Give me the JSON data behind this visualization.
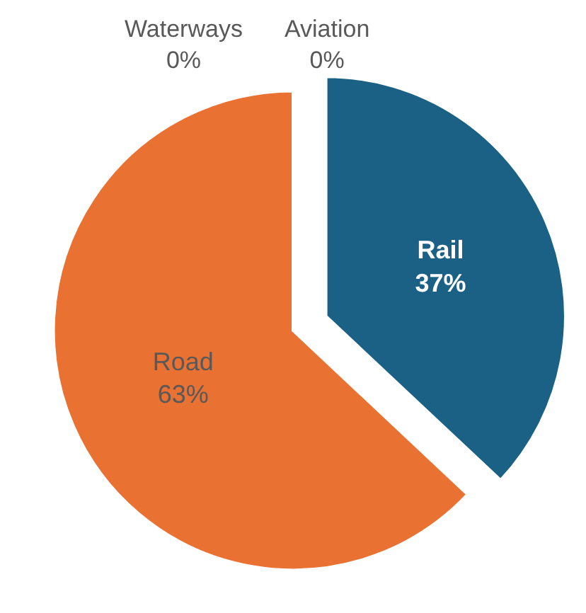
{
  "chart_data": {
    "type": "pie",
    "categories": [
      "Rail",
      "Road",
      "Waterways",
      "Aviation"
    ],
    "values": [
      37,
      63,
      0,
      0
    ],
    "colors": [
      "#1b6185",
      "#e97132",
      "#a6a6a6",
      "#7f7f7f"
    ],
    "value_labels": [
      "37%",
      "63%",
      "0%",
      "0%"
    ],
    "legend": false
  }
}
